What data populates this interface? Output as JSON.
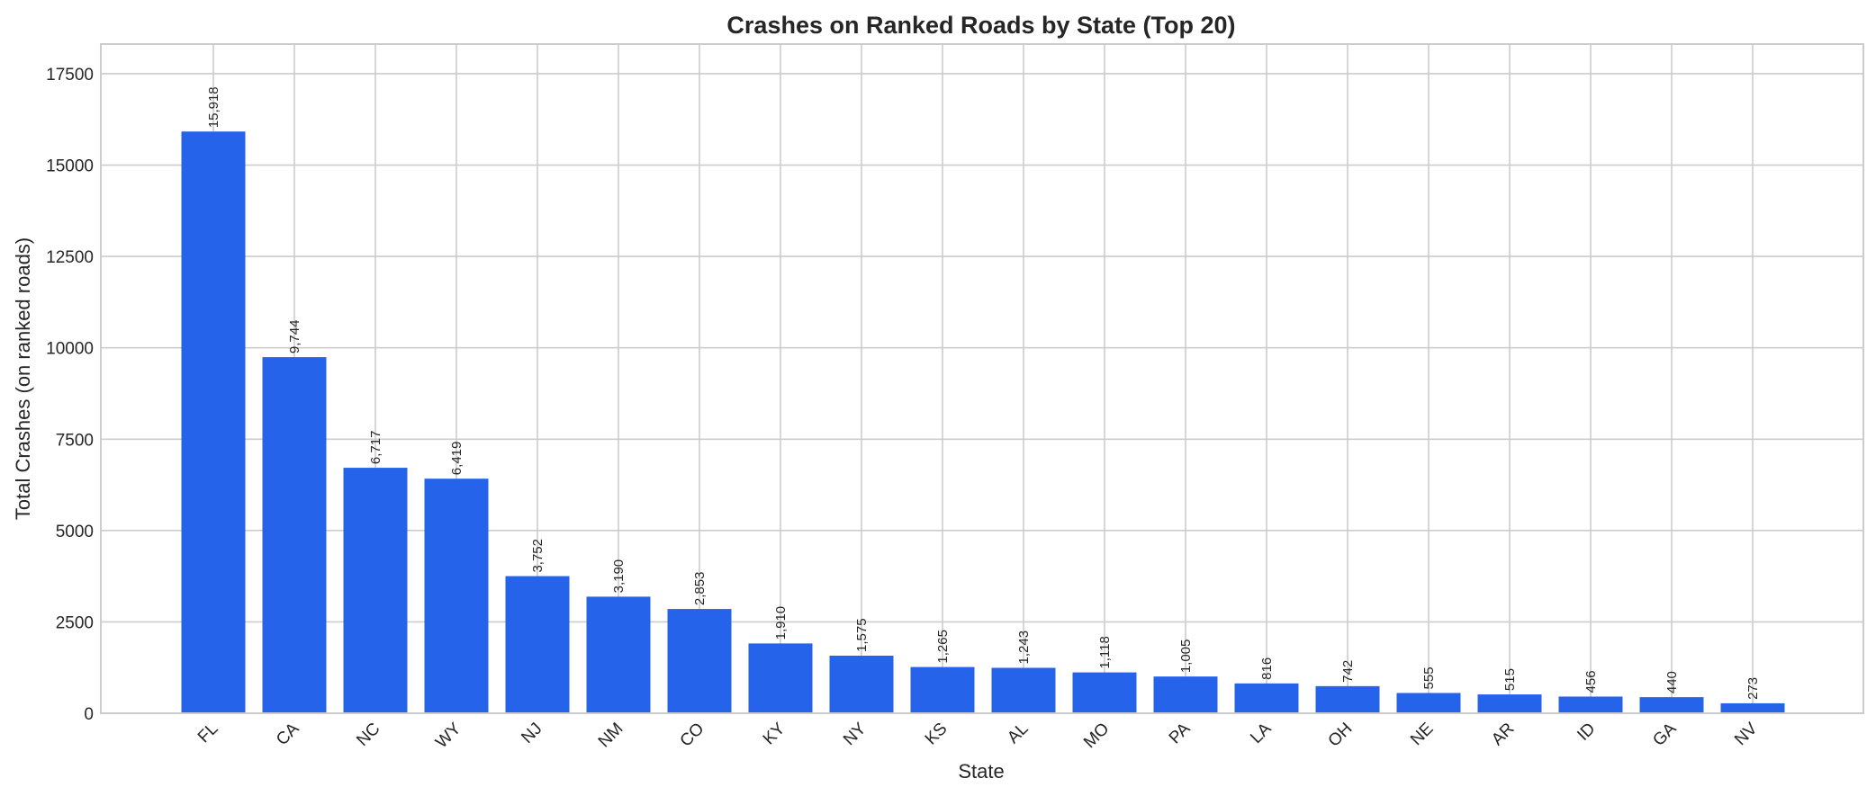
{
  "chart_data": {
    "type": "bar",
    "title": "Crashes on Ranked Roads by State (Top 20)",
    "xlabel": "State",
    "ylabel": "Total Crashes (on ranked roads)",
    "categories": [
      "FL",
      "CA",
      "NC",
      "WY",
      "NJ",
      "NM",
      "CO",
      "KY",
      "NY",
      "KS",
      "AL",
      "MO",
      "PA",
      "LA",
      "OH",
      "NE",
      "AR",
      "ID",
      "GA",
      "NV"
    ],
    "values": [
      15918,
      9744,
      6717,
      6419,
      3752,
      3190,
      2853,
      1910,
      1575,
      1265,
      1243,
      1118,
      1005,
      816,
      742,
      555,
      515,
      456,
      440,
      273
    ],
    "value_labels": [
      "15,918",
      "9,744",
      "6,717",
      "6,419",
      "3,752",
      "3,190",
      "2,853",
      "1,910",
      "1,575",
      "1,265",
      "1,243",
      "1,118",
      "1,005",
      "816",
      "742",
      "555",
      "515",
      "456",
      "440",
      "273"
    ],
    "yticks": [
      0,
      2500,
      5000,
      7500,
      10000,
      12500,
      15000,
      17500
    ],
    "ylim": [
      0,
      18311
    ],
    "grid": true,
    "legend": null,
    "bar_color": "#2563EB",
    "xtick_rotation": 45
  }
}
